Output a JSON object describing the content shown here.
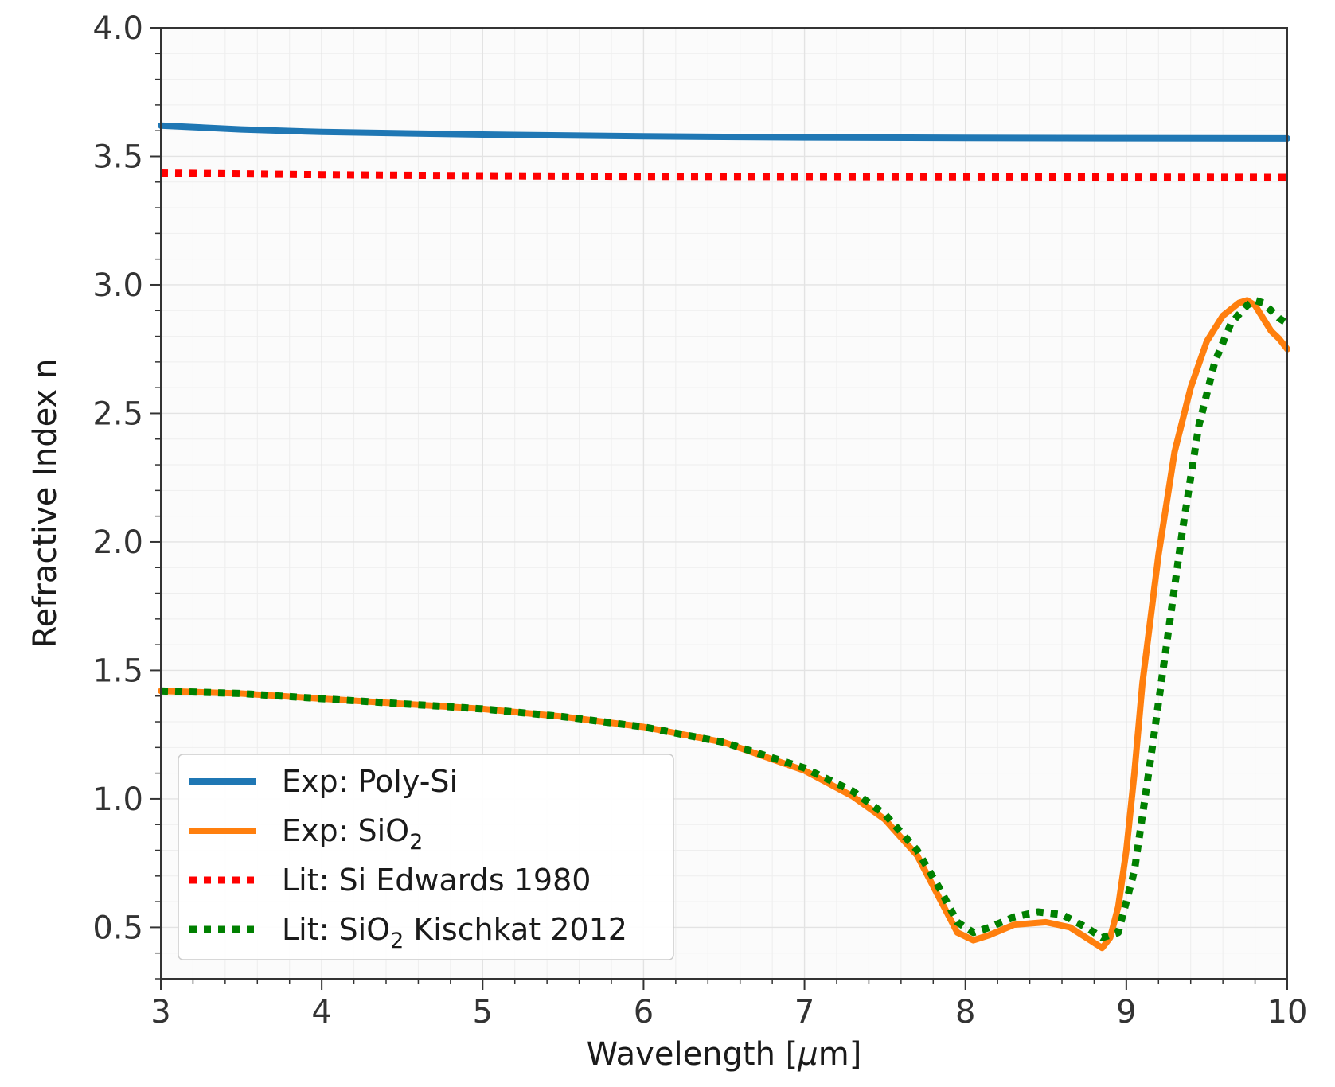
{
  "chart_data": {
    "type": "line",
    "title": "",
    "xlabel": "Wavelength [μm]",
    "xlabel_parts": [
      "Wavelength [",
      "μ",
      "m]"
    ],
    "ylabel": "Refractive Index n",
    "xlim": [
      3,
      10
    ],
    "ylim": [
      0.3,
      4.0
    ],
    "xticks": [
      3,
      4,
      5,
      6,
      7,
      8,
      9,
      10
    ],
    "yticks": [
      0.5,
      1.0,
      1.5,
      2.0,
      2.5,
      3.0,
      3.5,
      4.0
    ],
    "xtick_labels": [
      "3",
      "4",
      "5",
      "6",
      "7",
      "8",
      "9",
      "10"
    ],
    "ytick_labels": [
      "0.5",
      "1.0",
      "1.5",
      "2.0",
      "2.5",
      "3.0",
      "3.5",
      "4.0"
    ],
    "grid": true,
    "legend_position": "bottom-left",
    "series": [
      {
        "name": "Exp: Poly-Si",
        "label_main": "Exp: Poly-Si",
        "label_sub": "",
        "label_tail": "",
        "color": "#1f77b4",
        "style": "solid",
        "x": [
          3.0,
          3.5,
          4.0,
          5.0,
          6.0,
          7.0,
          8.0,
          9.0,
          10.0
        ],
        "y": [
          3.62,
          3.605,
          3.595,
          3.585,
          3.578,
          3.574,
          3.572,
          3.571,
          3.57
        ]
      },
      {
        "name": "Exp: SiO2",
        "label_main": "Exp: SiO",
        "label_sub": "2",
        "label_tail": "",
        "color": "#ff7f0e",
        "style": "solid",
        "x": [
          3.0,
          3.5,
          4.0,
          4.5,
          5.0,
          5.5,
          6.0,
          6.5,
          7.0,
          7.3,
          7.5,
          7.7,
          7.85,
          7.95,
          8.05,
          8.15,
          8.3,
          8.5,
          8.65,
          8.75,
          8.85,
          8.9,
          8.95,
          9.0,
          9.05,
          9.1,
          9.2,
          9.3,
          9.4,
          9.5,
          9.6,
          9.7,
          9.75,
          9.8,
          9.85,
          9.9,
          9.95,
          10.0
        ],
        "y": [
          1.42,
          1.41,
          1.39,
          1.37,
          1.35,
          1.32,
          1.28,
          1.22,
          1.11,
          1.01,
          0.92,
          0.78,
          0.6,
          0.48,
          0.45,
          0.47,
          0.51,
          0.52,
          0.5,
          0.46,
          0.42,
          0.46,
          0.58,
          0.8,
          1.1,
          1.45,
          1.95,
          2.35,
          2.6,
          2.78,
          2.88,
          2.93,
          2.94,
          2.92,
          2.87,
          2.82,
          2.79,
          2.75
        ]
      },
      {
        "name": "Lit: Si Edwards 1980",
        "label_main": "Lit: Si Edwards 1980",
        "label_sub": "",
        "label_tail": "",
        "color": "#ff0000",
        "style": "dotted",
        "x": [
          3.0,
          4.0,
          5.0,
          6.0,
          7.0,
          8.0,
          9.0,
          10.0
        ],
        "y": [
          3.435,
          3.428,
          3.424,
          3.422,
          3.421,
          3.42,
          3.419,
          3.418
        ]
      },
      {
        "name": "Lit: SiO2 Kischkat 2012",
        "label_main": "Lit: SiO",
        "label_sub": "2",
        "label_tail": " Kischkat 2012",
        "color": "#008000",
        "style": "dotted",
        "x": [
          3.0,
          3.5,
          4.0,
          4.5,
          5.0,
          5.5,
          6.0,
          6.5,
          7.0,
          7.3,
          7.5,
          7.7,
          7.85,
          7.95,
          8.05,
          8.15,
          8.3,
          8.45,
          8.6,
          8.75,
          8.85,
          8.95,
          9.05,
          9.15,
          9.25,
          9.35,
          9.45,
          9.55,
          9.65,
          9.75,
          9.8,
          9.85,
          9.9,
          9.95,
          10.0
        ],
        "y": [
          1.42,
          1.41,
          1.39,
          1.37,
          1.35,
          1.32,
          1.28,
          1.22,
          1.12,
          1.03,
          0.94,
          0.8,
          0.64,
          0.52,
          0.48,
          0.5,
          0.54,
          0.56,
          0.55,
          0.5,
          0.46,
          0.48,
          0.72,
          1.15,
          1.6,
          2.05,
          2.45,
          2.7,
          2.85,
          2.92,
          2.94,
          2.93,
          2.9,
          2.87,
          2.85
        ]
      }
    ]
  }
}
